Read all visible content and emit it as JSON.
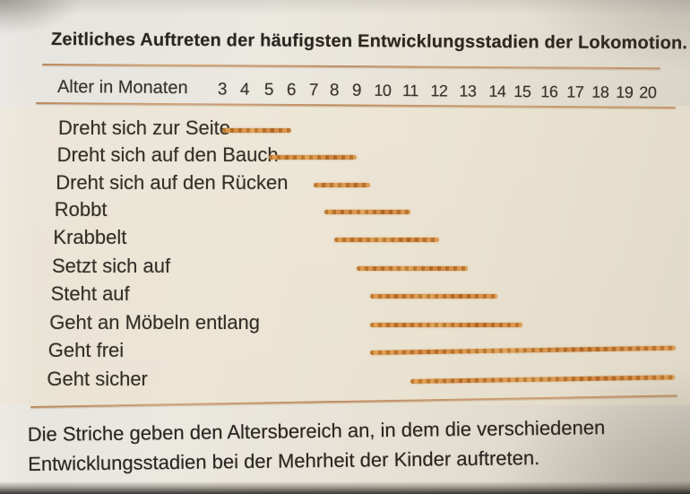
{
  "page": {
    "title": "Zeitliches Auftreten der häufigsten Entwicklungsstadien der Lokomotion.",
    "caption_line1": "Die Striche geben den Altersbereich an, in dem die verschiedenen",
    "caption_line2": "Entwicklungsstadien bei der Mehrheit der Kinder auftreten."
  },
  "chart_data": {
    "type": "bar",
    "subtype": "horizontal-range",
    "title": "Zeitliches Auftreten der häufigsten Entwicklungsstadien der Lokomotion.",
    "xlabel": "Alter in Monaten",
    "xlim": [
      3,
      20
    ],
    "months": [
      3,
      4,
      5,
      6,
      7,
      8,
      9,
      10,
      11,
      12,
      13,
      14,
      15,
      16,
      17,
      18,
      19,
      20
    ],
    "bar_color": "#cf8438",
    "grid": false,
    "legend": false,
    "series": [
      {
        "label": "Dreht sich zur Seite",
        "start_month": 3,
        "end_month": 6,
        "extends_beyond_axis": false
      },
      {
        "label": "Dreht sich auf den Bauch",
        "start_month": 5,
        "end_month": 9,
        "extends_beyond_axis": false
      },
      {
        "label": "Dreht sich auf den Rücken",
        "start_month": 7,
        "end_month": 9.5,
        "extends_beyond_axis": false
      },
      {
        "label": "Robbt",
        "start_month": 7.5,
        "end_month": 11,
        "extends_beyond_axis": false
      },
      {
        "label": "Krabbelt",
        "start_month": 8,
        "end_month": 12,
        "extends_beyond_axis": false
      },
      {
        "label": "Setzt sich auf",
        "start_month": 9,
        "end_month": 13,
        "extends_beyond_axis": false
      },
      {
        "label": "Steht auf",
        "start_month": 9.5,
        "end_month": 14,
        "extends_beyond_axis": false
      },
      {
        "label": "Geht an Möbeln entlang",
        "start_month": 9.5,
        "end_month": 15,
        "extends_beyond_axis": false
      },
      {
        "label": "Geht frei",
        "start_month": 9.5,
        "end_month": 20,
        "extends_beyond_axis": true
      },
      {
        "label": "Geht sicher",
        "start_month": 11,
        "end_month": 20,
        "extends_beyond_axis": true
      }
    ]
  }
}
